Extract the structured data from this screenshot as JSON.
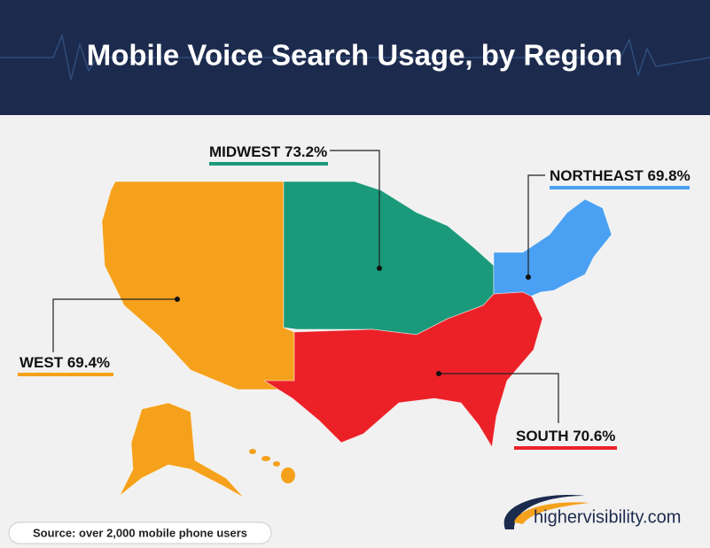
{
  "title": "Mobile Voice Search Usage, by Region",
  "regions": [
    {
      "label": "MIDWEST 73.2%",
      "color": "#1a9a7a"
    },
    {
      "label": "NORTHEAST 69.8%",
      "color": "#4aa0f2"
    },
    {
      "label": "WEST 69.4%",
      "color": "#f5a11c"
    },
    {
      "label": "SOUTH 70.6%",
      "color": "#ec2128"
    }
  ],
  "source": "Source: over 2,000 mobile phone users",
  "logo": "highervisibility.com"
}
